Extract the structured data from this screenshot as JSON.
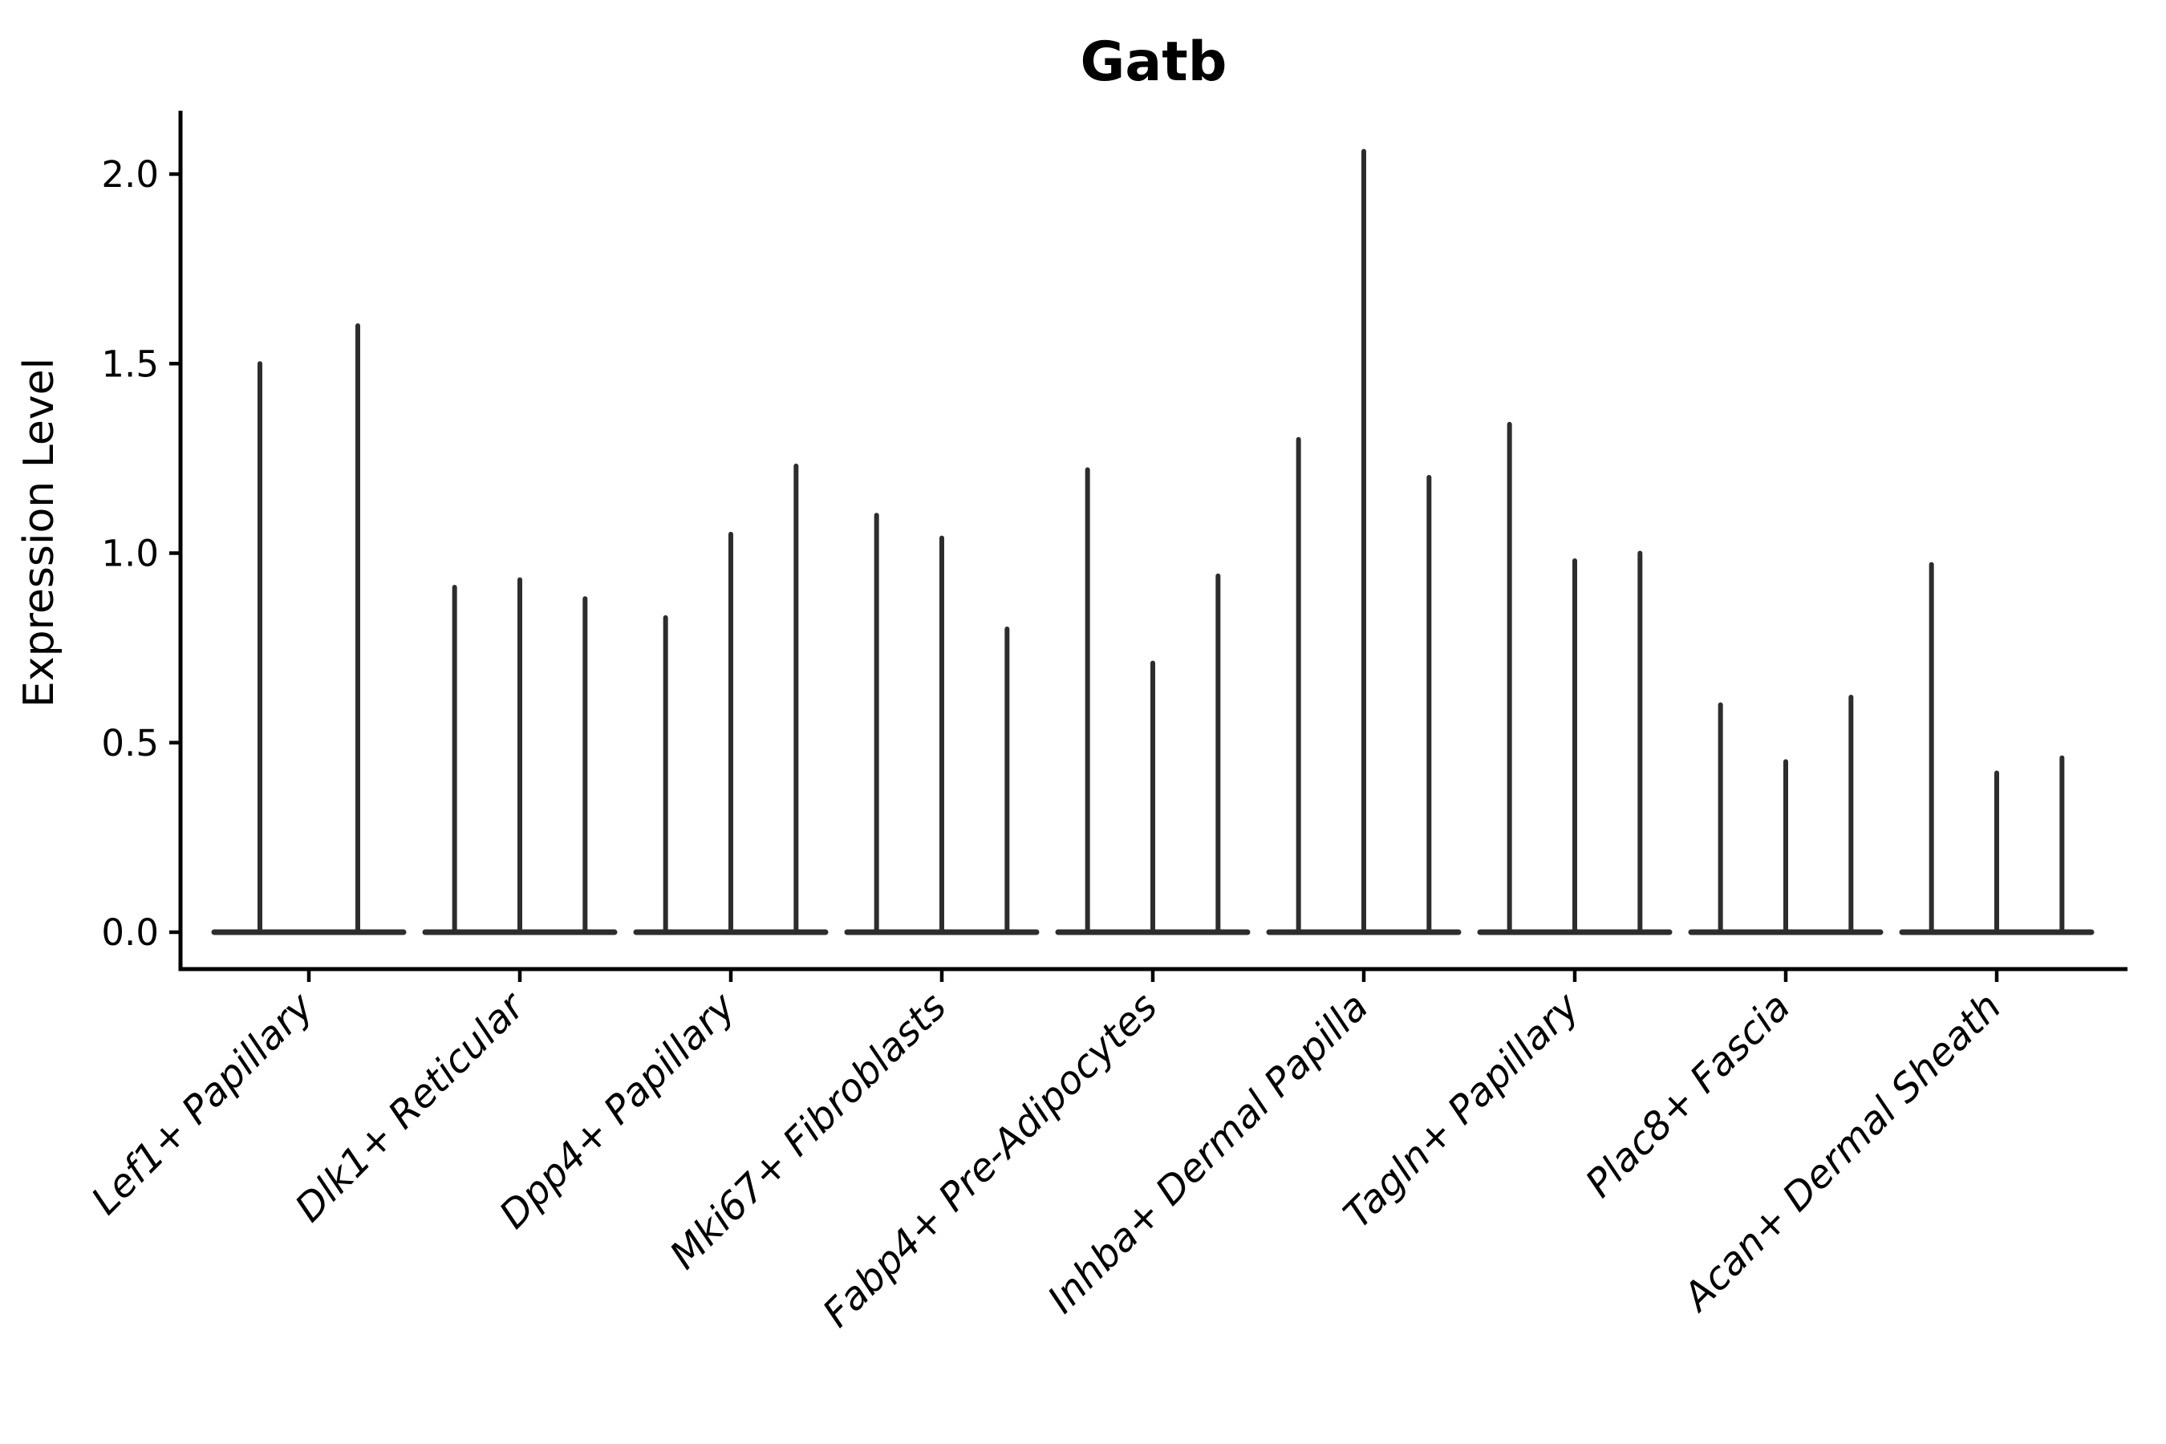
{
  "chart_data": {
    "type": "violin",
    "title": "Gatb",
    "xlabel": "",
    "ylabel": "Expression Level",
    "ytick_labels": [
      "0.0",
      "0.5",
      "1.0",
      "1.5",
      "2.0"
    ],
    "ytick_values": [
      0.0,
      0.5,
      1.0,
      1.5,
      2.0
    ],
    "ylim": [
      -0.1,
      2.17
    ],
    "grid": false,
    "legend": "none",
    "categories": [
      {
        "label": "Lef1+ Papillary",
        "violin_maxima": [
          1.5,
          1.6
        ]
      },
      {
        "label": "Dlk1+ Reticular",
        "violin_maxima": [
          0.91,
          0.93,
          0.88
        ]
      },
      {
        "label": "Dpp4+ Papillary",
        "violin_maxima": [
          0.83,
          1.05,
          1.23
        ]
      },
      {
        "label": "Mki67+ Fibroblasts",
        "violin_maxima": [
          1.1,
          1.04,
          0.8
        ]
      },
      {
        "label": "Fabp4+ Pre-Adipocytes",
        "violin_maxima": [
          1.22,
          0.71,
          0.94
        ]
      },
      {
        "label": "Inhba+ Dermal Papilla",
        "violin_maxima": [
          1.3,
          2.06,
          1.2
        ]
      },
      {
        "label": "Tagln+ Papillary",
        "violin_maxima": [
          1.34,
          0.98,
          1.0
        ]
      },
      {
        "label": "Plac8+ Fascia",
        "violin_maxima": [
          0.6,
          0.45,
          0.62
        ]
      },
      {
        "label": "Acan+ Dermal Sheath",
        "violin_maxima": [
          0.97,
          0.42,
          0.46
        ]
      }
    ],
    "baseline_value": 0.0,
    "colors": {
      "violin": "#2d2d2d",
      "axis": "#000000",
      "text": "#000000",
      "background": "#ffffff"
    }
  }
}
